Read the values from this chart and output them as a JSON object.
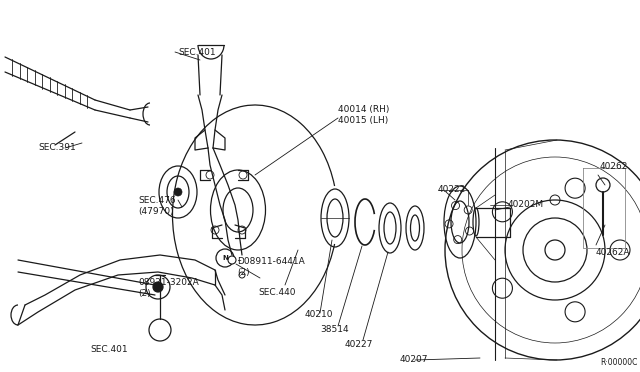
{
  "bg_color": "#ffffff",
  "line_color": "#1a1a1a",
  "fig_width": 6.4,
  "fig_height": 3.72,
  "dpi": 100,
  "watermark": "R·00000C",
  "xlim": [
    0,
    640
  ],
  "ylim": [
    0,
    372
  ]
}
